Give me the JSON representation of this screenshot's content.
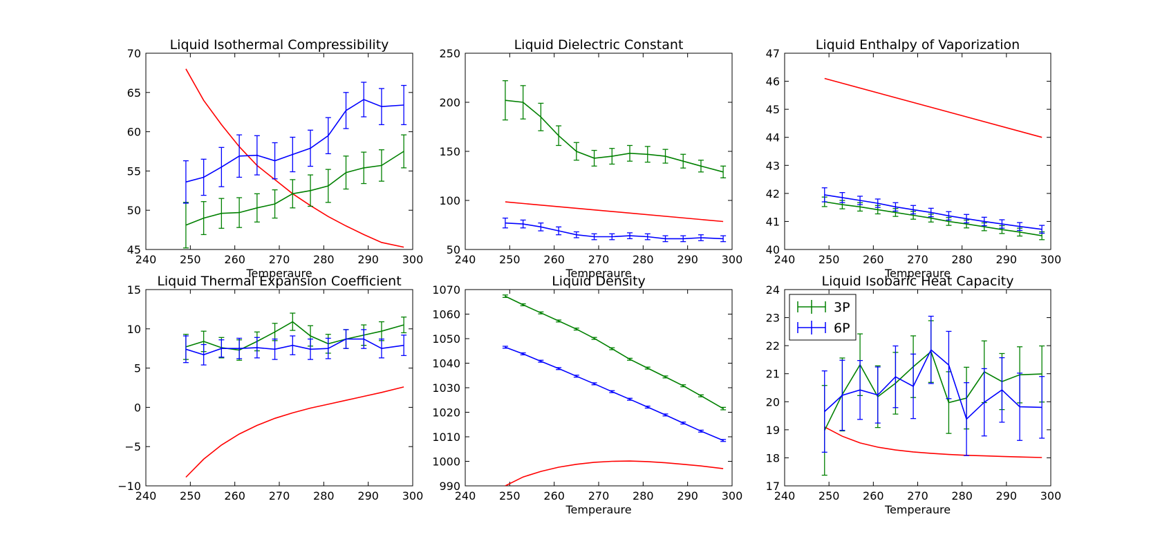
{
  "chart_data": [
    {
      "type": "line",
      "title": "Liquid Isothermal Compressibility",
      "xlabel": "Temperaure",
      "ylabel": "",
      "xlim": [
        240,
        300
      ],
      "ylim": [
        45,
        70
      ],
      "xticks": [
        240,
        250,
        260,
        270,
        280,
        290,
        300
      ],
      "yticks": [
        45,
        50,
        55,
        60,
        65,
        70
      ],
      "series": [
        {
          "color": "#ff0000",
          "x": [
            249,
            253,
            257,
            261,
            265,
            269,
            273,
            277,
            281,
            285,
            289,
            293,
            298
          ],
          "y": [
            68.0,
            64.0,
            60.9,
            58.1,
            55.7,
            53.9,
            52.1,
            50.6,
            49.2,
            48.0,
            46.9,
            45.9,
            45.3
          ]
        },
        {
          "color": "#008000",
          "x": [
            249,
            253,
            257,
            261,
            265,
            269,
            273,
            277,
            281,
            285,
            289,
            293,
            298
          ],
          "y": [
            48.1,
            49.0,
            49.6,
            49.7,
            50.3,
            50.8,
            52.1,
            52.5,
            53.1,
            54.8,
            55.4,
            55.7,
            57.5
          ],
          "err": [
            2.9,
            2.1,
            1.9,
            1.9,
            1.8,
            1.8,
            1.8,
            2.0,
            2.1,
            2.1,
            2.0,
            2.0,
            2.1
          ]
        },
        {
          "color": "#0000ff",
          "x": [
            249,
            253,
            257,
            261,
            265,
            269,
            273,
            277,
            281,
            285,
            289,
            293,
            298
          ],
          "y": [
            53.6,
            54.2,
            55.5,
            56.9,
            57.0,
            56.3,
            57.1,
            57.9,
            59.5,
            62.7,
            64.1,
            63.2,
            63.4
          ],
          "err": [
            2.7,
            2.3,
            2.5,
            2.7,
            2.5,
            2.3,
            2.2,
            2.3,
            2.3,
            2.3,
            2.2,
            2.3,
            2.5
          ]
        }
      ]
    },
    {
      "type": "line",
      "title": "Liquid Dielectric Constant",
      "xlabel": "Temperaure",
      "ylabel": "",
      "xlim": [
        240,
        300
      ],
      "ylim": [
        50,
        250
      ],
      "xticks": [
        240,
        250,
        260,
        270,
        280,
        290,
        300
      ],
      "yticks": [
        50,
        100,
        150,
        200,
        250
      ],
      "series": [
        {
          "color": "#ff0000",
          "x": [
            249,
            298
          ],
          "y": [
            98.5,
            78.5
          ]
        },
        {
          "color": "#008000",
          "x": [
            249,
            253,
            257,
            261,
            265,
            269,
            273,
            277,
            281,
            285,
            289,
            293,
            298
          ],
          "y": [
            202,
            200,
            185,
            166,
            150,
            143,
            145,
            148,
            147,
            145,
            140,
            135,
            129
          ],
          "err": [
            20,
            17,
            14,
            10,
            9,
            8,
            8,
            8,
            8,
            7,
            7,
            6,
            6
          ]
        },
        {
          "color": "#0000ff",
          "x": [
            249,
            253,
            257,
            261,
            265,
            269,
            273,
            277,
            281,
            285,
            289,
            293,
            298
          ],
          "y": [
            77,
            76,
            73,
            69,
            65,
            63,
            63,
            64,
            63,
            61,
            61,
            62,
            61
          ],
          "err": [
            5,
            4,
            4,
            4,
            3,
            3,
            3,
            3,
            3,
            3,
            3,
            3,
            3
          ]
        }
      ]
    },
    {
      "type": "line",
      "title": "Liquid Enthalpy of Vaporization",
      "xlabel": "Temperaure",
      "ylabel": "",
      "xlim": [
        240,
        300
      ],
      "ylim": [
        40,
        47
      ],
      "xticks": [
        240,
        250,
        260,
        270,
        280,
        290,
        300
      ],
      "yticks": [
        40,
        41,
        42,
        43,
        44,
        45,
        46,
        47
      ],
      "series": [
        {
          "color": "#ff0000",
          "x": [
            249,
            298
          ],
          "y": [
            46.1,
            44.0
          ]
        },
        {
          "color": "#008000",
          "x": [
            249,
            253,
            257,
            261,
            265,
            269,
            273,
            277,
            281,
            285,
            289,
            293,
            298
          ],
          "y": [
            41.7,
            41.6,
            41.52,
            41.42,
            41.32,
            41.22,
            41.12,
            41.0,
            40.91,
            40.81,
            40.71,
            40.62,
            40.49
          ],
          "err": [
            0.17,
            0.15,
            0.15,
            0.15,
            0.14,
            0.14,
            0.14,
            0.14,
            0.14,
            0.14,
            0.14,
            0.14,
            0.14
          ]
        },
        {
          "color": "#0000ff",
          "x": [
            249,
            253,
            257,
            261,
            265,
            269,
            273,
            277,
            281,
            285,
            289,
            293,
            298
          ],
          "y": [
            41.95,
            41.85,
            41.75,
            41.65,
            41.52,
            41.42,
            41.32,
            41.2,
            41.1,
            41.0,
            40.91,
            40.82,
            40.72
          ],
          "err": [
            0.25,
            0.18,
            0.15,
            0.15,
            0.15,
            0.15,
            0.15,
            0.15,
            0.15,
            0.15,
            0.15,
            0.14,
            0.14
          ]
        }
      ]
    },
    {
      "type": "line",
      "title": "Liquid Thermal Expansion Coefficient",
      "xlabel": "",
      "ylabel": "",
      "xlim": [
        240,
        300
      ],
      "ylim": [
        -10,
        15
      ],
      "xticks": [
        240,
        250,
        260,
        270,
        280,
        290,
        300
      ],
      "yticks": [
        -10,
        -5,
        0,
        5,
        10,
        15
      ],
      "series": [
        {
          "color": "#ff0000",
          "x": [
            249,
            253,
            257,
            261,
            265,
            269,
            273,
            277,
            281,
            285,
            289,
            293,
            298
          ],
          "y": [
            -8.9,
            -6.6,
            -4.8,
            -3.4,
            -2.3,
            -1.4,
            -0.7,
            -0.1,
            0.4,
            0.9,
            1.4,
            1.9,
            2.6
          ]
        },
        {
          "color": "#008000",
          "x": [
            249,
            253,
            257,
            261,
            265,
            269,
            273,
            277,
            281,
            285,
            289,
            293,
            298
          ],
          "y": [
            7.7,
            8.4,
            7.6,
            7.3,
            8.4,
            9.6,
            10.9,
            9.1,
            8.1,
            8.7,
            9.2,
            9.7,
            10.5
          ],
          "err": [
            1.6,
            1.3,
            1.3,
            1.3,
            1.2,
            1.1,
            1.1,
            1.3,
            1.2,
            1.2,
            1.3,
            1.2,
            1.0
          ]
        },
        {
          "color": "#0000ff",
          "x": [
            249,
            253,
            257,
            261,
            265,
            269,
            273,
            277,
            281,
            285,
            289,
            293,
            298
          ],
          "y": [
            7.4,
            6.7,
            7.5,
            7.5,
            7.6,
            7.4,
            7.9,
            7.4,
            7.5,
            8.7,
            8.7,
            7.5,
            7.9
          ],
          "err": [
            1.7,
            1.3,
            1.1,
            1.3,
            1.3,
            1.3,
            1.2,
            1.3,
            1.3,
            1.2,
            1.2,
            1.2,
            1.3
          ]
        }
      ]
    },
    {
      "type": "line",
      "title": "Liquid Density",
      "xlabel": "Temperaure",
      "ylabel": "",
      "xlim": [
        240,
        300
      ],
      "ylim": [
        990,
        1070
      ],
      "xticks": [
        240,
        250,
        260,
        270,
        280,
        290,
        300
      ],
      "yticks": [
        990,
        1000,
        1010,
        1020,
        1030,
        1040,
        1050,
        1060,
        1070
      ],
      "series": [
        {
          "color": "#ff0000",
          "x": [
            249,
            253,
            257,
            261,
            265,
            269,
            273,
            277,
            281,
            285,
            289,
            293,
            298
          ],
          "y": [
            990.0,
            993.6,
            995.9,
            997.6,
            998.8,
            999.6,
            1000.0,
            1000.1,
            999.9,
            999.4,
            998.8,
            998.1,
            997.0
          ]
        },
        {
          "color": "#008000",
          "x": [
            249,
            253,
            257,
            261,
            265,
            269,
            273,
            277,
            281,
            285,
            289,
            293,
            298
          ],
          "y": [
            1067.3,
            1063.8,
            1060.5,
            1057.2,
            1053.9,
            1050.1,
            1045.9,
            1041.6,
            1038.0,
            1034.4,
            1030.8,
            1026.7,
            1021.5
          ],
          "err": [
            0.5,
            0.4,
            0.4,
            0.4,
            0.4,
            0.4,
            0.4,
            0.4,
            0.4,
            0.4,
            0.4,
            0.4,
            0.5
          ]
        },
        {
          "color": "#0000ff",
          "x": [
            249,
            253,
            257,
            261,
            265,
            269,
            273,
            277,
            281,
            285,
            289,
            293,
            298
          ],
          "y": [
            1046.5,
            1043.8,
            1040.8,
            1037.8,
            1034.7,
            1031.6,
            1028.4,
            1025.3,
            1022.1,
            1018.9,
            1015.6,
            1012.3,
            1008.5
          ],
          "err": [
            0.4,
            0.4,
            0.4,
            0.4,
            0.4,
            0.4,
            0.4,
            0.4,
            0.4,
            0.4,
            0.4,
            0.4,
            0.4
          ]
        }
      ]
    },
    {
      "type": "line",
      "title": "Liquid Isobaric Heat Capacity",
      "xlabel": "Temperaure",
      "ylabel": "",
      "xlim": [
        240,
        300
      ],
      "ylim": [
        17,
        24
      ],
      "xticks": [
        240,
        250,
        260,
        270,
        280,
        290,
        300
      ],
      "yticks": [
        17,
        18,
        19,
        20,
        21,
        22,
        23,
        24
      ],
      "legend": {
        "position": "upper-left",
        "entries": [
          "3P",
          "6P"
        ]
      },
      "series": [
        {
          "color": "#ff0000",
          "x": [
            249,
            253,
            257,
            261,
            265,
            269,
            273,
            277,
            281,
            285,
            289,
            293,
            298
          ],
          "y": [
            19.1,
            18.77,
            18.53,
            18.38,
            18.28,
            18.21,
            18.16,
            18.12,
            18.09,
            18.07,
            18.05,
            18.03,
            18.01
          ]
        },
        {
          "name": "3P",
          "color": "#008000",
          "x": [
            249,
            253,
            257,
            261,
            265,
            269,
            273,
            277,
            281,
            285,
            289,
            293,
            298
          ],
          "y": [
            18.98,
            20.26,
            21.32,
            20.18,
            20.66,
            21.25,
            21.79,
            19.97,
            20.13,
            21.07,
            20.72,
            20.96,
            20.99
          ],
          "err": [
            1.6,
            1.3,
            1.1,
            1.1,
            1.1,
            1.1,
            1.1,
            1.1,
            1.1,
            1.1,
            1.0,
            1.0,
            1.0
          ]
        },
        {
          "name": "6P",
          "color": "#0000ff",
          "x": [
            249,
            253,
            257,
            261,
            265,
            269,
            273,
            277,
            281,
            285,
            289,
            293,
            298
          ],
          "y": [
            19.65,
            20.23,
            20.42,
            20.24,
            20.89,
            20.55,
            21.85,
            21.31,
            19.38,
            19.98,
            20.42,
            19.82,
            19.8
          ],
          "err": [
            1.45,
            1.25,
            1.05,
            1.0,
            1.1,
            1.15,
            1.2,
            1.2,
            1.3,
            1.2,
            1.15,
            1.2,
            1.1
          ]
        }
      ]
    }
  ]
}
